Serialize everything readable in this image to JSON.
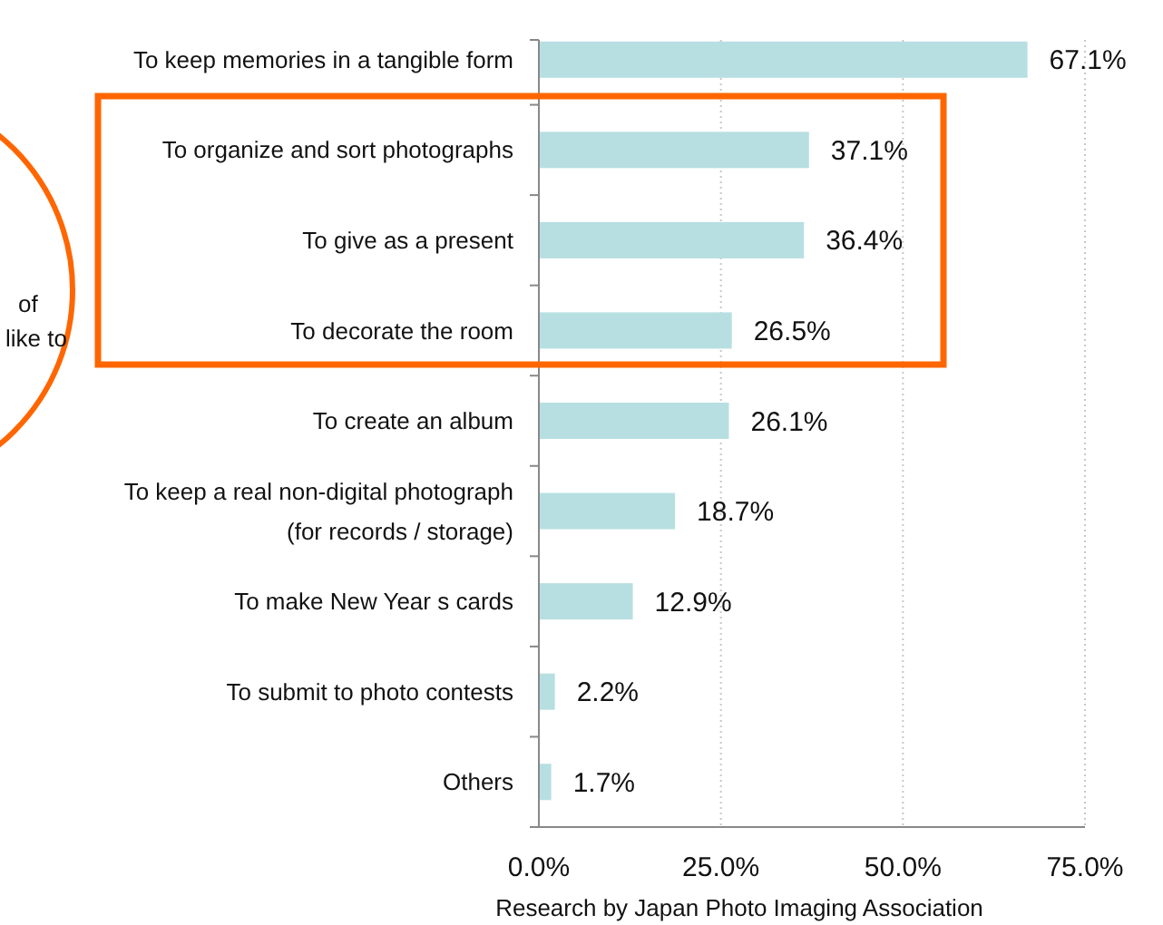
{
  "chart_data": {
    "type": "bar",
    "orientation": "horizontal",
    "categories": [
      "To keep memories in a tangible form",
      "To organize and sort photographs",
      "To give as a present",
      "To decorate the room",
      "To create an album",
      "To keep a real non-digital photograph\n(for records / storage)",
      "To make New Year s cards",
      "To submit to photo contests",
      "Others"
    ],
    "values": [
      67.1,
      37.1,
      36.4,
      26.5,
      26.1,
      18.7,
      12.9,
      2.2,
      1.7
    ],
    "value_labels": [
      "67.1%",
      "37.1%",
      "36.4%",
      "26.5%",
      "26.1%",
      "18.7%",
      "12.9%",
      "2.2%",
      "1.7%"
    ],
    "color": "#b7dfe1",
    "xlim": [
      0,
      75
    ],
    "xticks": [
      {
        "value": 0,
        "label": "0.0%"
      },
      {
        "value": 25,
        "label": "25.0%"
      },
      {
        "value": 50,
        "label": "50.0%"
      },
      {
        "value": 75,
        "label": "75.0%"
      }
    ],
    "grid": "x",
    "annotations": [
      "of",
      "like to",
      "Research by Japan  Photo Imaging Association"
    ]
  }
}
